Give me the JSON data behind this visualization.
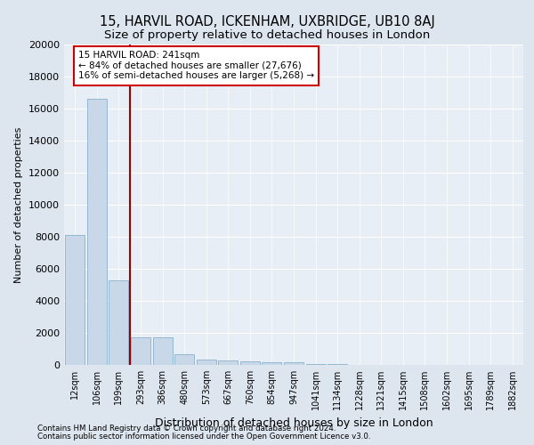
{
  "title": "15, HARVIL ROAD, ICKENHAM, UXBRIDGE, UB10 8AJ",
  "subtitle": "Size of property relative to detached houses in London",
  "xlabel": "Distribution of detached houses by size in London",
  "ylabel": "Number of detached properties",
  "footer_line1": "Contains HM Land Registry data © Crown copyright and database right 2024.",
  "footer_line2": "Contains public sector information licensed under the Open Government Licence v3.0.",
  "bin_labels": [
    "12sqm",
    "106sqm",
    "199sqm",
    "293sqm",
    "386sqm",
    "480sqm",
    "573sqm",
    "667sqm",
    "760sqm",
    "854sqm",
    "947sqm",
    "1041sqm",
    "1134sqm",
    "1228sqm",
    "1321sqm",
    "1415sqm",
    "1508sqm",
    "1602sqm",
    "1695sqm",
    "1789sqm",
    "1882sqm"
  ],
  "bar_values": [
    8100,
    16600,
    5300,
    1750,
    1750,
    650,
    350,
    280,
    230,
    180,
    150,
    50,
    30,
    20,
    10,
    8,
    5,
    3,
    2,
    2,
    1
  ],
  "bar_color": "#c8d8e8",
  "bar_edge_color": "#7aa8c8",
  "vline_color": "#990000",
  "annotation_line1": "15 HARVIL ROAD: 241sqm",
  "annotation_line2": "← 84% of detached houses are smaller (27,676)",
  "annotation_line3": "16% of semi-detached houses are larger (5,268) →",
  "annotation_box_color": "#cc0000",
  "ylim": [
    0,
    20000
  ],
  "yticks": [
    0,
    2000,
    4000,
    6000,
    8000,
    10000,
    12000,
    14000,
    16000,
    18000,
    20000
  ],
  "bg_color": "#dde5ef",
  "plot_bg_color": "#e8eef5",
  "grid_color": "#ffffff",
  "title_fontsize": 10.5,
  "subtitle_fontsize": 9.5,
  "ylabel_fontsize": 8,
  "xlabel_fontsize": 9,
  "ytick_fontsize": 8,
  "xtick_fontsize": 7
}
